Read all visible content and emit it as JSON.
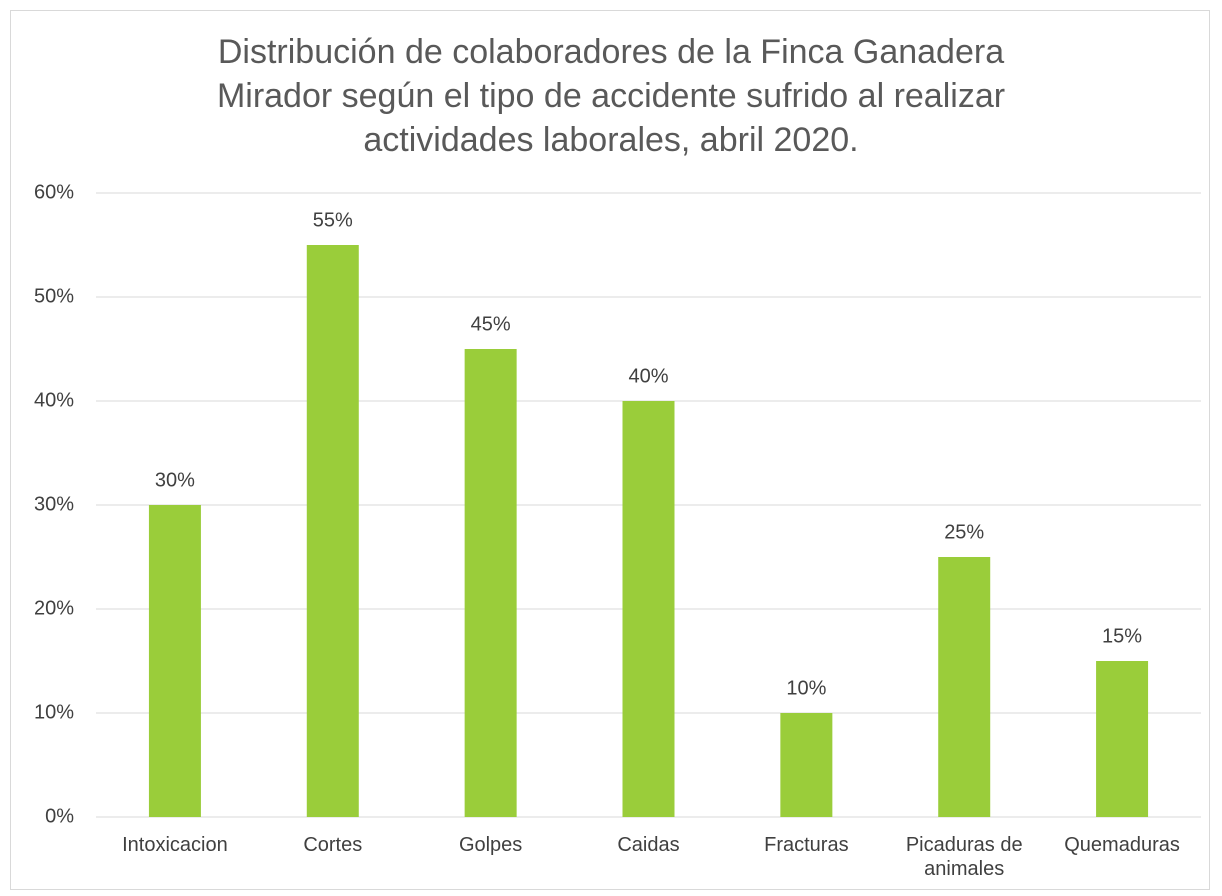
{
  "chart_data": {
    "type": "bar",
    "title": "Distribución de colaboradores de la Finca Ganadera\nMirador según el tipo de accidente sufrido al realizar\nactividades laborales, abril 2020.",
    "categories": [
      "Intoxicacion",
      "Cortes",
      "Golpes",
      "Caidas",
      "Fracturas",
      "Picaduras de animales",
      "Quemaduras"
    ],
    "values": [
      30,
      55,
      45,
      40,
      10,
      25,
      15
    ],
    "value_labels": [
      "30%",
      "55%",
      "45%",
      "40%",
      "10%",
      "25%",
      "15%"
    ],
    "color": "#9acd3a",
    "ylim": [
      0,
      60
    ],
    "yticks": [
      {
        "value": 0,
        "label": "0%"
      },
      {
        "value": 10,
        "label": "10%"
      },
      {
        "value": 20,
        "label": "20%"
      },
      {
        "value": 30,
        "label": "30%"
      },
      {
        "value": 40,
        "label": "40%"
      },
      {
        "value": 50,
        "label": "50%"
      },
      {
        "value": 60,
        "label": "60%"
      }
    ],
    "grid": true
  }
}
